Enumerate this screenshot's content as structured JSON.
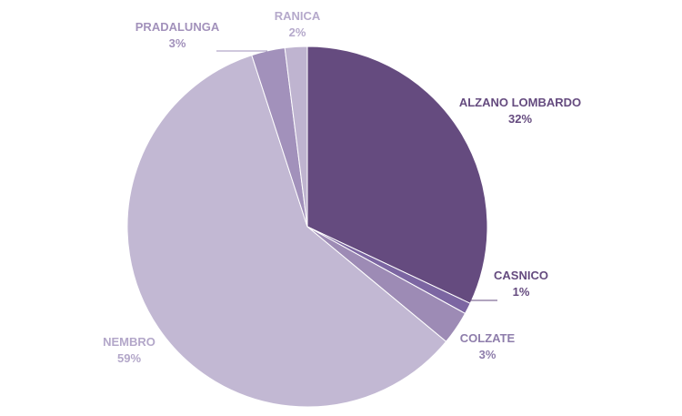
{
  "chart_data": {
    "type": "pie",
    "slices": [
      {
        "label": "ALZANO LOMBARDO",
        "value": 32,
        "value_text": "32%",
        "color": "#654b7f",
        "label_color": "#654b7f"
      },
      {
        "label": "CASNICO",
        "value": 1,
        "value_text": "1%",
        "color": "#7c66a2",
        "label_color": "#654b7f"
      },
      {
        "label": "COLZATE",
        "value": 3,
        "value_text": "3%",
        "color": "#9d8bb5",
        "label_color": "#8e7dab"
      },
      {
        "label": "NEMBRO",
        "value": 59,
        "value_text": "59%",
        "color": "#c2b8d3",
        "label_color": "#b3a7c9"
      },
      {
        "label": "PRADALUNGA",
        "value": 3,
        "value_text": "3%",
        "color": "#a291bb",
        "label_color": "#a291bb"
      },
      {
        "label": "RANICA",
        "value": 2,
        "value_text": "2%",
        "color": "#bfb4d0",
        "label_color": "#b5a9cb"
      }
    ]
  }
}
